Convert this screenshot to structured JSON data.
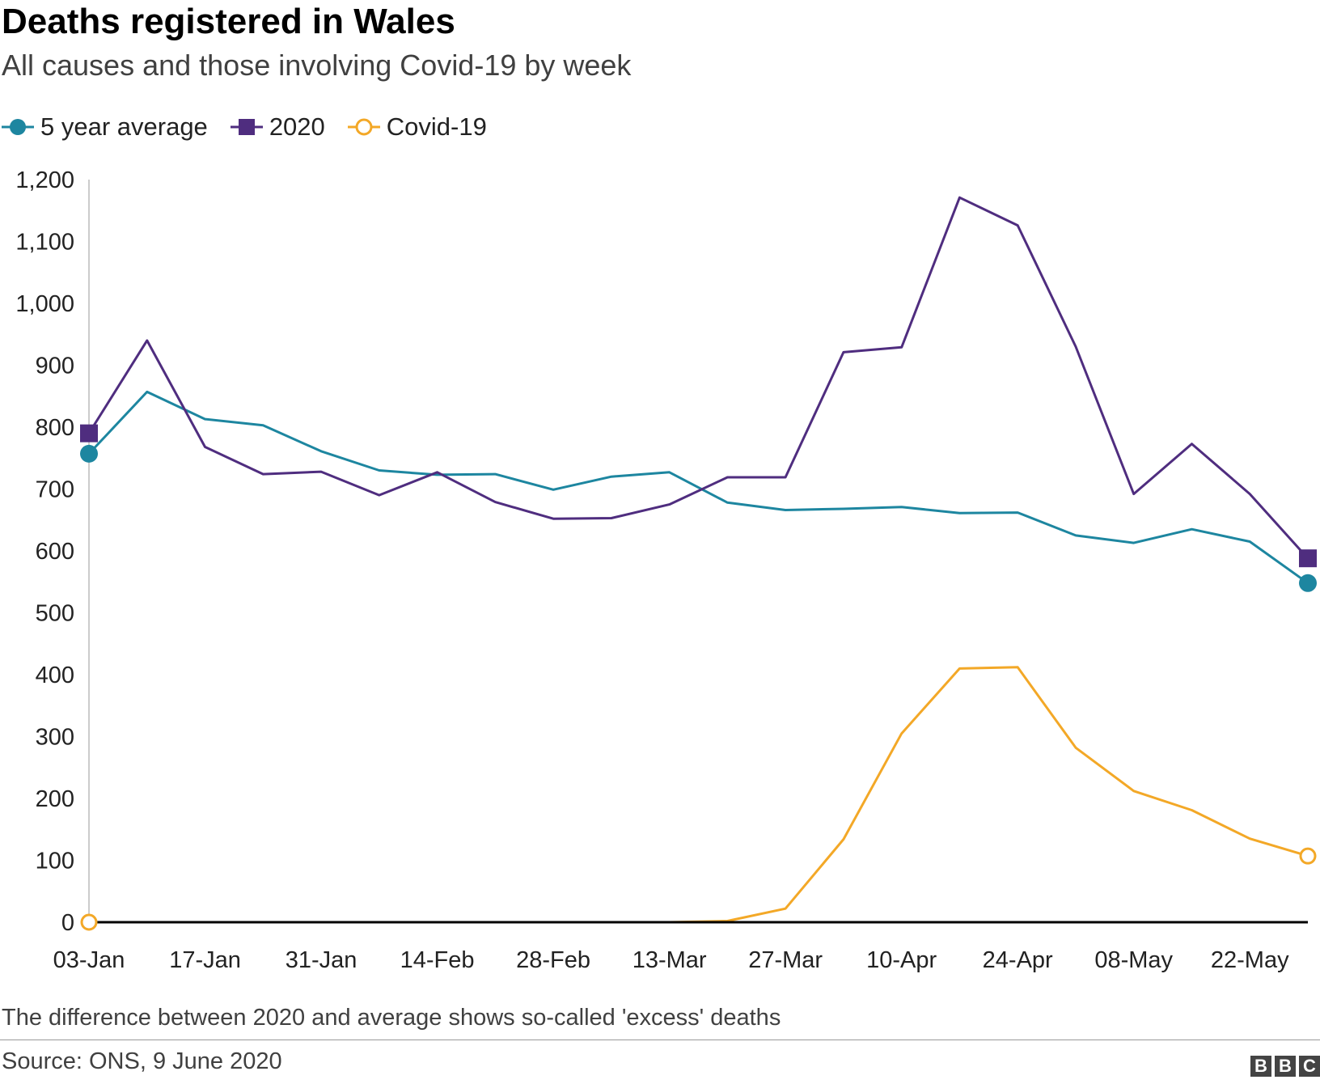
{
  "header": {
    "title": "Deaths registered in Wales",
    "subtitle": "All causes and those involving Covid-19 by week"
  },
  "legend": [
    {
      "label": "5 year average",
      "marker": "filled-circle",
      "color": "#1d86a0"
    },
    {
      "label": "2020",
      "marker": "square",
      "color": "#4f2d7f"
    },
    {
      "label": "Covid-19",
      "marker": "open-circle",
      "color": "#f3a827"
    }
  ],
  "footer": {
    "note": "The difference between 2020 and average shows so-called 'excess' deaths",
    "source": "Source: ONS, 9 June 2020",
    "logo": [
      "B",
      "B",
      "C"
    ]
  },
  "chart_data": {
    "type": "line",
    "x": [
      "03-Jan",
      "10-Jan",
      "17-Jan",
      "24-Jan",
      "31-Jan",
      "07-Feb",
      "14-Feb",
      "21-Feb",
      "28-Feb",
      "06-Mar",
      "13-Mar",
      "20-Mar",
      "27-Mar",
      "03-Apr",
      "10-Apr",
      "17-Apr",
      "24-Apr",
      "01-May",
      "08-May",
      "15-May",
      "22-May",
      "29-May"
    ],
    "xticks": [
      "03-Jan",
      "17-Jan",
      "31-Jan",
      "14-Feb",
      "28-Feb",
      "13-Mar",
      "27-Mar",
      "10-Apr",
      "24-Apr",
      "08-May",
      "22-May"
    ],
    "ylim": [
      0,
      1200
    ],
    "yticks": [
      0,
      100,
      200,
      300,
      400,
      500,
      600,
      700,
      800,
      900,
      1000,
      1100,
      1200
    ],
    "ytick_labels": [
      "0",
      "100",
      "200",
      "300",
      "400",
      "500",
      "600",
      "700",
      "800",
      "900",
      "1,000",
      "1,100",
      "1,200"
    ],
    "series": [
      {
        "name": "5 year average",
        "color": "#1d86a0",
        "end_marker": "filled-circle",
        "values": [
          757,
          857,
          813,
          803,
          761,
          730,
          723,
          724,
          699,
          720,
          727,
          678,
          666,
          668,
          671,
          661,
          662,
          625,
          613,
          635,
          615,
          548
        ]
      },
      {
        "name": "2020",
        "color": "#4f2d7f",
        "end_marker": "square",
        "values": [
          790,
          940,
          768,
          724,
          728,
          690,
          727,
          679,
          652,
          653,
          675,
          719,
          719,
          921,
          929,
          1171,
          1126,
          930,
          692,
          773,
          692,
          588
        ]
      },
      {
        "name": "Covid-19",
        "color": "#f3a827",
        "end_marker": "open-circle",
        "values": [
          0,
          0,
          0,
          0,
          0,
          0,
          0,
          0,
          0,
          0,
          0,
          2,
          22,
          134,
          305,
          410,
          412,
          282,
          212,
          181,
          135,
          107
        ]
      }
    ],
    "grid": false,
    "legend_position": "top-left"
  }
}
